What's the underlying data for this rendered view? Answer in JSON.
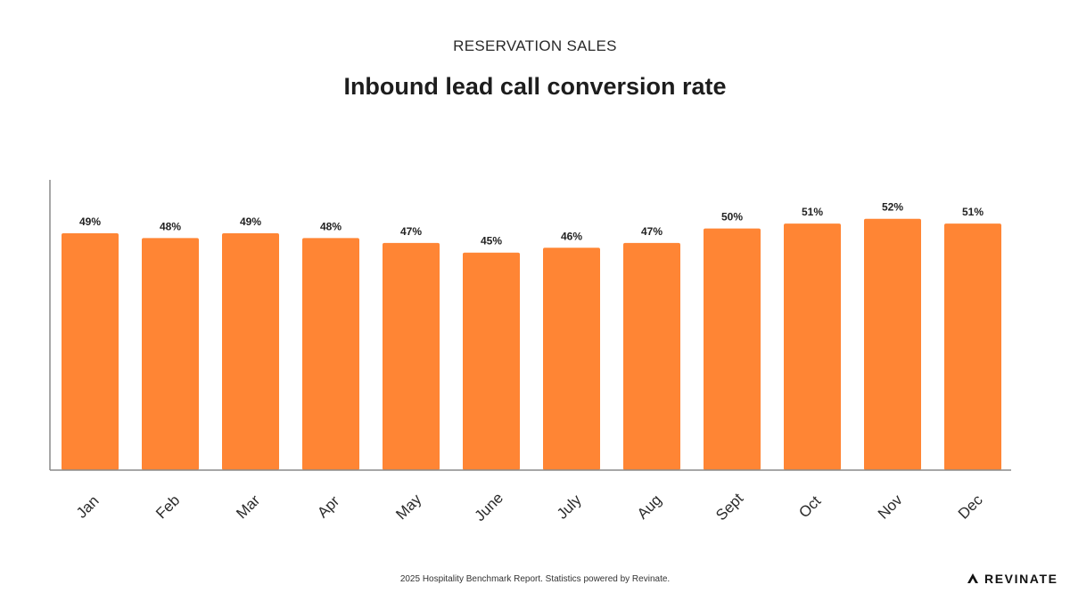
{
  "header": {
    "eyebrow": "RESERVATION SALES",
    "title": "Inbound lead call conversion rate"
  },
  "footer": {
    "note": "2025 Hospitality Benchmark Report. Statistics powered by Revinate.",
    "brand": "REVINATE",
    "brand_icon": "revinate-logo-icon"
  },
  "colors": {
    "bar": "#FF8534",
    "axis": "#8a8a8a",
    "label": "#222222"
  },
  "chart_data": {
    "type": "bar",
    "title": "Inbound lead call conversion rate",
    "xlabel": "",
    "ylabel": "",
    "categories": [
      "Jan",
      "Feb",
      "Mar",
      "Apr",
      "May",
      "June",
      "July",
      "Aug",
      "Sept",
      "Oct",
      "Nov",
      "Dec"
    ],
    "values": [
      49,
      48,
      49,
      48,
      47,
      45,
      46,
      47,
      50,
      51,
      52,
      51
    ],
    "value_labels": [
      "49%",
      "48%",
      "49%",
      "48%",
      "47%",
      "45%",
      "46%",
      "47%",
      "50%",
      "51%",
      "52%",
      "51%"
    ],
    "ylim": [
      0,
      60
    ],
    "grid": false,
    "legend": "none"
  }
}
